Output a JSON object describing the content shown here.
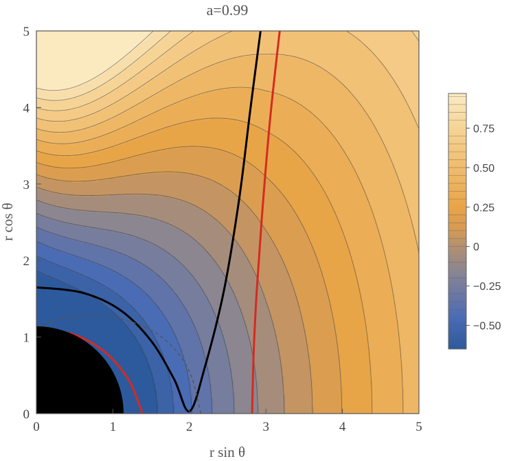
{
  "chart_data": {
    "type": "contour",
    "title": "a=0.99",
    "xlabel": "r sin θ",
    "ylabel": "r cos θ",
    "xlim": [
      0,
      5
    ],
    "ylim": [
      0,
      5
    ],
    "x_ticks": [
      "0",
      "1",
      "2",
      "3",
      "4",
      "5"
    ],
    "y_ticks": [
      "0",
      "1",
      "2",
      "3",
      "4",
      "5"
    ],
    "colorbar": {
      "min": -0.65,
      "max": 0.97,
      "ticks": [
        {
          "value": 0.75,
          "label": "0.75"
        },
        {
          "value": 0.5,
          "label": "0.50"
        },
        {
          "value": 0.25,
          "label": "0.25"
        },
        {
          "value": 0,
          "label": "0"
        },
        {
          "value": -0.25,
          "label": "−0.25"
        },
        {
          "value": -0.5,
          "label": "−0.50"
        }
      ],
      "stops": [
        {
          "value": -0.65,
          "color": "#2d5a9c"
        },
        {
          "value": -0.45,
          "color": "#4a6cb4"
        },
        {
          "value": -0.3,
          "color": "#6d78a4"
        },
        {
          "value": -0.15,
          "color": "#8c8690"
        },
        {
          "value": 0.0,
          "color": "#b39070"
        },
        {
          "value": 0.1,
          "color": "#d49a55"
        },
        {
          "value": 0.25,
          "color": "#e8a548"
        },
        {
          "value": 0.5,
          "color": "#f0bc6e"
        },
        {
          "value": 0.75,
          "color": "#f6d496"
        },
        {
          "value": 0.97,
          "color": "#fbebc4"
        }
      ]
    },
    "contour_levels": [
      -0.6,
      -0.5,
      -0.4,
      -0.3,
      -0.2,
      -0.1,
      0.0,
      0.1,
      0.2,
      0.3,
      0.4,
      0.5,
      0.6,
      0.7,
      0.8,
      0.9
    ],
    "highlight_curves": [
      {
        "color": "#000000",
        "points": [
          [
            0,
            1.65
          ],
          [
            0.6,
            1.58
          ],
          [
            1.1,
            1.35
          ],
          [
            1.5,
            0.95
          ],
          [
            1.8,
            0.45
          ],
          [
            2.0,
            0.03
          ],
          [
            2.2,
            0.6
          ],
          [
            2.45,
            1.6
          ],
          [
            2.65,
            2.8
          ],
          [
            2.8,
            4.0
          ],
          [
            2.93,
            5.0
          ]
        ]
      },
      {
        "color": "#d62a1f",
        "points": [
          [
            0,
            1.12
          ],
          [
            0.5,
            1.03
          ],
          [
            0.9,
            0.8
          ],
          [
            1.2,
            0.45
          ],
          [
            1.35,
            0.1
          ],
          [
            1.38,
            0.0
          ]
        ]
      },
      {
        "color": "#d62a1f",
        "points": [
          [
            2.82,
            0.0
          ],
          [
            2.84,
            0.8
          ],
          [
            2.88,
            1.6
          ],
          [
            2.95,
            2.6
          ],
          [
            3.05,
            3.8
          ],
          [
            3.18,
            5.0
          ]
        ]
      },
      {
        "color": "#555555",
        "dashed": true,
        "points": [
          [
            0,
            1.12
          ],
          [
            0.3,
            1.23
          ],
          [
            0.8,
            1.28
          ],
          [
            1.3,
            1.18
          ],
          [
            1.7,
            0.95
          ],
          [
            2.0,
            0.55
          ],
          [
            2.15,
            0.0
          ]
        ]
      }
    ],
    "horizon_radius": 1.14
  }
}
